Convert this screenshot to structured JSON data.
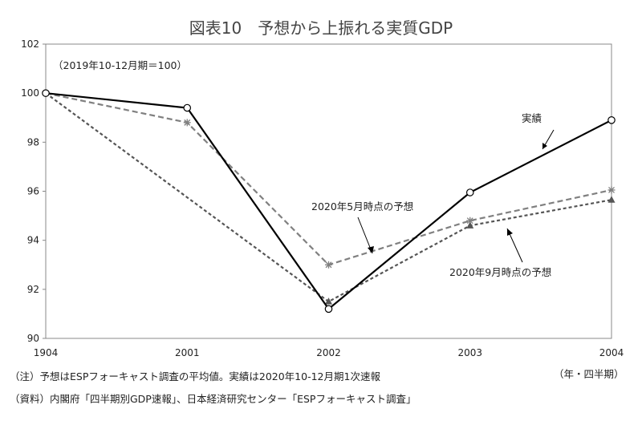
{
  "chart_data": {
    "type": "line",
    "title": "図表10　予想から上振れる実質GDP",
    "base_note": "（2019年10-12月期＝100）",
    "x_unit_label": "（年・四半期）",
    "categories": [
      "1904",
      "2001",
      "2002",
      "2003",
      "2004"
    ],
    "ylim": [
      90,
      102
    ],
    "yticks": [
      90,
      92,
      94,
      96,
      98,
      100,
      102
    ],
    "grid": false,
    "series": [
      {
        "name": "実績",
        "style": "solid",
        "marker": "circle",
        "color": "#000000",
        "values": [
          100.0,
          99.4,
          91.2,
          95.95,
          98.9
        ]
      },
      {
        "name": "2020年5月時点の予想",
        "style": "dashed",
        "marker": "star",
        "color": "#808080",
        "values": [
          100.0,
          98.8,
          93.0,
          94.8,
          96.05
        ]
      },
      {
        "name": "2020年9月時点の予想",
        "style": "dotted",
        "marker": "triangle",
        "color": "#555555",
        "values": [
          100.0,
          null,
          91.5,
          94.6,
          95.65
        ]
      }
    ],
    "notes": [
      "（注）予想はESPフォーキャスト調査の平均値。実績は2020年10-12月期1次速報",
      "（資料）内閣府「四半期別GDP速報」、日本経済研究センター「ESPフォーキャスト調査」"
    ]
  }
}
